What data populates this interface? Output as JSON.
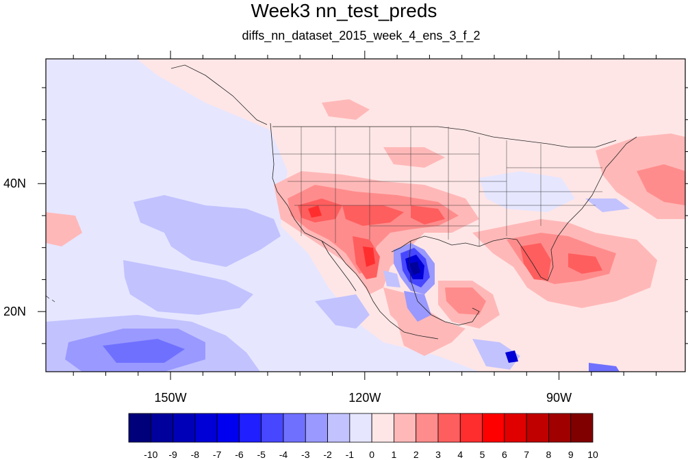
{
  "title": "Week3 nn_test_preds",
  "subtitle": "diffs_nn_dataset_2015_week_4_ens_3_f_2",
  "map": {
    "lon_range": [
      -169.25,
      -70.5
    ],
    "lat_range": [
      10.6,
      59.5
    ],
    "x_ticks": [
      {
        "value": -150,
        "label": "150W"
      },
      {
        "value": -120,
        "label": "120W"
      },
      {
        "value": -90,
        "label": "90W"
      }
    ],
    "y_ticks": [
      {
        "value": 40,
        "label": "40N"
      },
      {
        "value": 20,
        "label": "20N"
      }
    ]
  },
  "colorbar": {
    "labels": [
      "-10",
      "-9",
      "-8",
      "-7",
      "-6",
      "-5",
      "-4",
      "-3",
      "-2",
      "-1",
      "0",
      "1",
      "2",
      "3",
      "4",
      "5",
      "6",
      "7",
      "8",
      "9",
      "10"
    ],
    "colors": [
      "#00007a",
      "#00009c",
      "#0000b8",
      "#0000d6",
      "#0000f0",
      "#1f1fff",
      "#4747ff",
      "#7070ff",
      "#9999ff",
      "#c2c2ff",
      "#e6e6ff",
      "#ffe6e6",
      "#ffb8b8",
      "#ff8c8c",
      "#ff5e5e",
      "#ff2e2e",
      "#ff0000",
      "#e00000",
      "#c00000",
      "#a00000",
      "#800000"
    ]
  }
}
